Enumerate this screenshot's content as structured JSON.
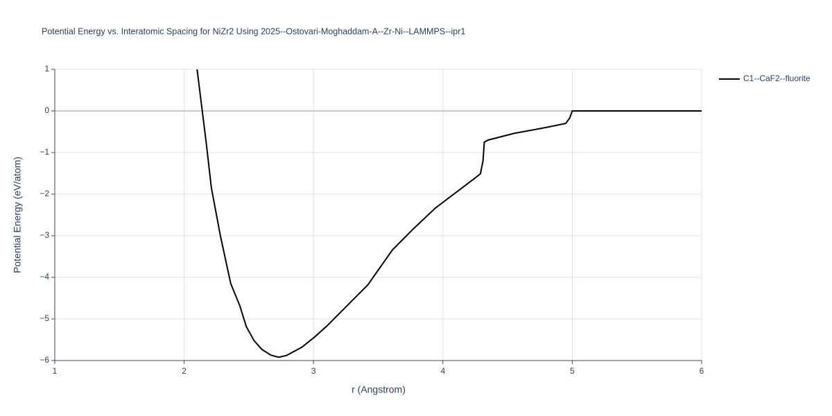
{
  "chart_data": {
    "type": "line",
    "title": "Potential Energy vs. Interatomic Spacing for NiZr2 Using 2025--Ostovari-Moghaddam-A--Zr-Ni--LAMMPS--ipr1",
    "x_label": "r (Angstrom)",
    "y_label": "Potential Energy (eV/atom)",
    "xlim": [
      1,
      6
    ],
    "ylim": [
      -6,
      1
    ],
    "xticks": [
      1,
      2,
      3,
      4,
      5,
      6
    ],
    "yticks": [
      {
        "value": -6,
        "label": "−6"
      },
      {
        "value": -5,
        "label": "−5"
      },
      {
        "value": -4,
        "label": "−4"
      },
      {
        "value": -3,
        "label": "−3"
      },
      {
        "value": -2,
        "label": "−2"
      },
      {
        "value": -1,
        "label": "−1"
      },
      0,
      1
    ],
    "grid": true,
    "legend": "top-right",
    "series": [
      {
        "name": "C1--CaF2--fluorite",
        "color": "#000000",
        "x": [
          2.1,
          2.17,
          2.21,
          2.28,
          2.36,
          2.43,
          2.48,
          2.54,
          2.6,
          2.67,
          2.73,
          2.79,
          2.91,
          3.01,
          3.1,
          3.26,
          3.42,
          3.61,
          3.78,
          3.94,
          4.08,
          4.25,
          4.29,
          4.31,
          4.32,
          4.35,
          4.55,
          4.81,
          4.95,
          4.98,
          5.0,
          6.0
        ],
        "values": [
          1.0,
          -0.75,
          -1.84,
          -3.0,
          -4.15,
          -4.68,
          -5.18,
          -5.52,
          -5.73,
          -5.87,
          -5.92,
          -5.88,
          -5.68,
          -5.43,
          -5.18,
          -4.68,
          -4.18,
          -3.34,
          -2.81,
          -2.34,
          -2.01,
          -1.61,
          -1.51,
          -1.2,
          -0.75,
          -0.7,
          -0.54,
          -0.39,
          -0.3,
          -0.17,
          0.0,
          0.0
        ]
      }
    ]
  }
}
